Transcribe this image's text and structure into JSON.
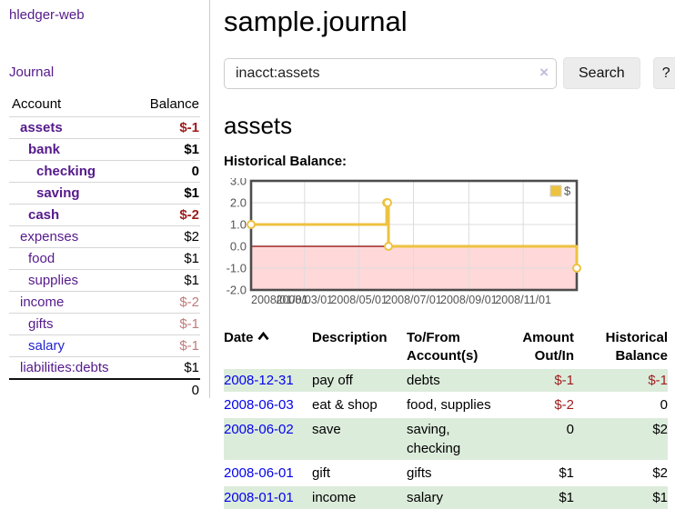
{
  "app": {
    "brand": "hledger-web"
  },
  "colors": {
    "purple": "#551a8b",
    "blue": "#2323cf",
    "date_blue": "#0202ec",
    "neg_strong": "#9e1c1c",
    "neg_faded": "#c17b7b",
    "black": "#000000",
    "row_green": "#dcecdb"
  },
  "sidebar": {
    "journal_link": "Journal",
    "accounts_table": {
      "headers": [
        "Account",
        "Balance"
      ],
      "rows": [
        {
          "name": "assets",
          "balance": "$-1",
          "indent": 1,
          "bold": true,
          "name_color": "purple",
          "balance_color": "neg_strong"
        },
        {
          "name": "bank",
          "balance": "$1",
          "indent": 2,
          "bold": true,
          "name_color": "purple",
          "balance_color": "black"
        },
        {
          "name": "checking",
          "balance": "0",
          "indent": 3,
          "bold": true,
          "name_color": "purple",
          "balance_color": "black"
        },
        {
          "name": "saving",
          "balance": "$1",
          "indent": 3,
          "bold": true,
          "name_color": "purple",
          "balance_color": "black"
        },
        {
          "name": "cash",
          "balance": "$-2",
          "indent": 2,
          "bold": true,
          "name_color": "purple",
          "balance_color": "neg_strong"
        },
        {
          "name": "expenses",
          "balance": "$2",
          "indent": 1,
          "bold": false,
          "name_color": "purple",
          "balance_color": "black"
        },
        {
          "name": "food",
          "balance": "$1",
          "indent": 2,
          "bold": false,
          "name_color": "purple",
          "balance_color": "black"
        },
        {
          "name": "supplies",
          "balance": "$1",
          "indent": 2,
          "bold": false,
          "name_color": "purple",
          "balance_color": "black"
        },
        {
          "name": "income",
          "balance": "$-2",
          "indent": 1,
          "bold": false,
          "name_color": "purple",
          "balance_color": "neg_faded"
        },
        {
          "name": "gifts",
          "balance": "$-1",
          "indent": 2,
          "bold": false,
          "name_color": "purple",
          "balance_color": "neg_faded"
        },
        {
          "name": "salary",
          "balance": "$-1",
          "indent": 2,
          "bold": false,
          "name_color": "blue",
          "balance_color": "neg_faded"
        },
        {
          "name": "liabilities:debts",
          "balance": "$1",
          "indent": 1,
          "bold": false,
          "name_color": "purple",
          "balance_color": "black"
        }
      ],
      "total": "0"
    }
  },
  "header": {
    "title": "sample.journal"
  },
  "search": {
    "query": "inacct:assets",
    "clear_icon": "×",
    "search_label": "Search",
    "help_label": "?"
  },
  "account_page": {
    "heading": "assets",
    "chart_label": "Historical Balance:"
  },
  "chart_data": {
    "type": "line",
    "style": "step",
    "title": "Historical Balance",
    "series": [
      {
        "name": "$",
        "points": [
          [
            "2008-01-01",
            1
          ],
          [
            "2008-06-01",
            2
          ],
          [
            "2008-06-02",
            2
          ],
          [
            "2008-06-03",
            0
          ],
          [
            "2008-12-31",
            -1
          ]
        ]
      }
    ],
    "xlim": [
      "2008-01-01",
      "2008-12-31"
    ],
    "ylim": [
      -2,
      3
    ],
    "y_ticks": [
      "3.0",
      "2.0",
      "1.0",
      "0.0",
      "-1.0",
      "-2.0"
    ],
    "x_ticks": [
      "2008/01/01",
      "2008/03/01",
      "2008/05/01",
      "2008/07/01",
      "2008/09/01",
      "2008/11/01"
    ],
    "legend": {
      "label": "$",
      "position": "top-right"
    },
    "grid": true,
    "colors": {
      "line": "#edc240",
      "marker_fill": "#ffffff",
      "negative_region": "#ffd9d9",
      "zero_line": "#8b0000",
      "axis_text": "#545454",
      "grid": "#dcdcdc",
      "plot_border": "#4d4d4d"
    }
  },
  "register_table": {
    "headers": [
      "Date",
      "Description",
      "To/From Account(s)",
      "Amount Out/In",
      "Historical Balance"
    ],
    "sort_indicator": "ascending",
    "rows": [
      {
        "date": "2008-12-31",
        "description": "pay off",
        "accounts": "debts",
        "amount": "$-1",
        "balance": "$-1",
        "amount_color": "neg_strong",
        "balance_color": "neg_strong"
      },
      {
        "date": "2008-06-03",
        "description": "eat & shop",
        "accounts": "food, supplies",
        "amount": "$-2",
        "balance": "0",
        "amount_color": "neg_strong",
        "balance_color": "black"
      },
      {
        "date": "2008-06-02",
        "description": "save",
        "accounts": "saving, checking",
        "amount": "0",
        "balance": "$2",
        "amount_color": "black",
        "balance_color": "black"
      },
      {
        "date": "2008-06-01",
        "description": "gift",
        "accounts": "gifts",
        "amount": "$1",
        "balance": "$2",
        "amount_color": "black",
        "balance_color": "black"
      },
      {
        "date": "2008-01-01",
        "description": "income",
        "accounts": "salary",
        "amount": "$1",
        "balance": "$1",
        "amount_color": "black",
        "balance_color": "black"
      }
    ]
  }
}
